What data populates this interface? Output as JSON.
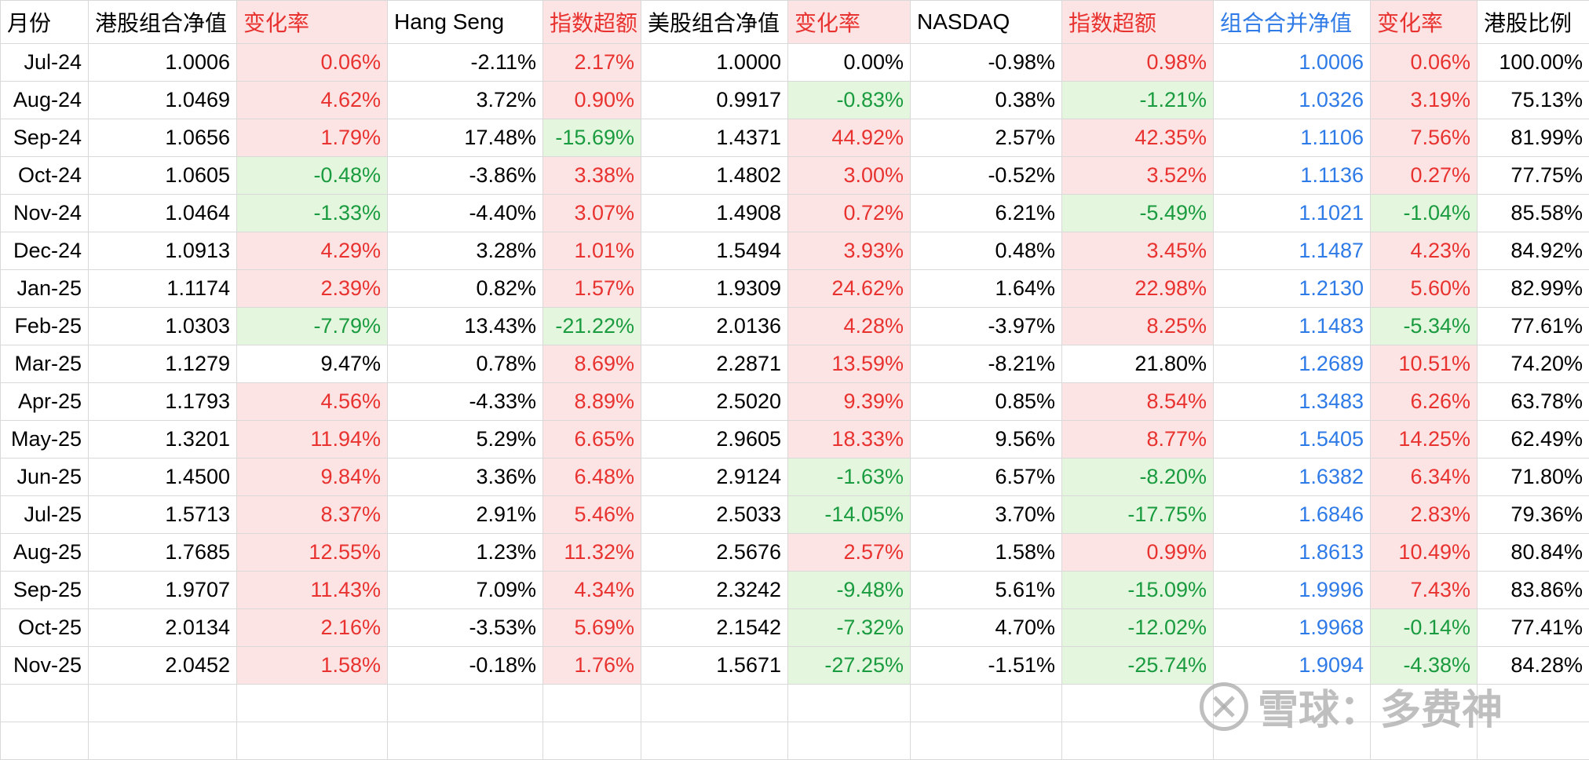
{
  "colors": {
    "text_default": "#000000",
    "text_red": "#e8322f",
    "text_green": "#1a9b3f",
    "text_blue": "#2e7ae6",
    "fill_red": "#fde4e4",
    "fill_green": "#e4f7de",
    "grid": "#d9d9d9"
  },
  "columns": [
    {
      "label": "月份",
      "color": "black",
      "fill": "none"
    },
    {
      "label": "港股组合净值",
      "color": "black",
      "fill": "none"
    },
    {
      "label": "变化率",
      "color": "red",
      "fill": "red"
    },
    {
      "label": "Hang Seng",
      "color": "black",
      "fill": "none"
    },
    {
      "label": "指数超额",
      "color": "red",
      "fill": "red"
    },
    {
      "label": "美股组合净值",
      "color": "black",
      "fill": "none"
    },
    {
      "label": "变化率",
      "color": "red",
      "fill": "red"
    },
    {
      "label": "NASDAQ",
      "color": "black",
      "fill": "none"
    },
    {
      "label": "指数超额",
      "color": "red",
      "fill": "red"
    },
    {
      "label": "组合合并净值",
      "color": "blue",
      "fill": "none"
    },
    {
      "label": "变化率",
      "color": "red",
      "fill": "red"
    },
    {
      "label": "港股比例",
      "color": "black",
      "fill": "none"
    }
  ],
  "rows": [
    {
      "cells": [
        "Jul-24",
        "1.0006",
        "0.06%",
        "-2.11%",
        "2.17%",
        "1.0000",
        "0.00%",
        "-0.98%",
        "0.98%",
        "1.0006",
        "0.06%",
        "100.00%"
      ],
      "colors": [
        "black",
        "black",
        "red",
        "black",
        "red",
        "black",
        "black",
        "black",
        "red",
        "blue",
        "red",
        "black"
      ],
      "fills": [
        "none",
        "none",
        "red",
        "none",
        "red",
        "none",
        "none",
        "none",
        "red",
        "none",
        "red",
        "none"
      ]
    },
    {
      "cells": [
        "Aug-24",
        "1.0469",
        "4.62%",
        "3.72%",
        "0.90%",
        "0.9917",
        "-0.83%",
        "0.38%",
        "-1.21%",
        "1.0326",
        "3.19%",
        "75.13%"
      ],
      "colors": [
        "black",
        "black",
        "red",
        "black",
        "red",
        "black",
        "green",
        "black",
        "green",
        "blue",
        "red",
        "black"
      ],
      "fills": [
        "none",
        "none",
        "red",
        "none",
        "red",
        "none",
        "green",
        "none",
        "green",
        "none",
        "red",
        "none"
      ]
    },
    {
      "cells": [
        "Sep-24",
        "1.0656",
        "1.79%",
        "17.48%",
        "-15.69%",
        "1.4371",
        "44.92%",
        "2.57%",
        "42.35%",
        "1.1106",
        "7.56%",
        "81.99%"
      ],
      "colors": [
        "black",
        "black",
        "red",
        "black",
        "green",
        "black",
        "red",
        "black",
        "red",
        "blue",
        "red",
        "black"
      ],
      "fills": [
        "none",
        "none",
        "red",
        "none",
        "green",
        "none",
        "red",
        "none",
        "red",
        "none",
        "red",
        "none"
      ]
    },
    {
      "cells": [
        "Oct-24",
        "1.0605",
        "-0.48%",
        "-3.86%",
        "3.38%",
        "1.4802",
        "3.00%",
        "-0.52%",
        "3.52%",
        "1.1136",
        "0.27%",
        "77.75%"
      ],
      "colors": [
        "black",
        "black",
        "green",
        "black",
        "red",
        "black",
        "red",
        "black",
        "red",
        "blue",
        "red",
        "black"
      ],
      "fills": [
        "none",
        "none",
        "green",
        "none",
        "red",
        "none",
        "red",
        "none",
        "red",
        "none",
        "red",
        "none"
      ]
    },
    {
      "cells": [
        "Nov-24",
        "1.0464",
        "-1.33%",
        "-4.40%",
        "3.07%",
        "1.4908",
        "0.72%",
        "6.21%",
        "-5.49%",
        "1.1021",
        "-1.04%",
        "85.58%"
      ],
      "colors": [
        "black",
        "black",
        "green",
        "black",
        "red",
        "black",
        "red",
        "black",
        "green",
        "blue",
        "green",
        "black"
      ],
      "fills": [
        "none",
        "none",
        "green",
        "none",
        "red",
        "none",
        "red",
        "none",
        "green",
        "none",
        "green",
        "none"
      ]
    },
    {
      "cells": [
        "Dec-24",
        "1.0913",
        "4.29%",
        "3.28%",
        "1.01%",
        "1.5494",
        "3.93%",
        "0.48%",
        "3.45%",
        "1.1487",
        "4.23%",
        "84.92%"
      ],
      "colors": [
        "black",
        "black",
        "red",
        "black",
        "red",
        "black",
        "red",
        "black",
        "red",
        "blue",
        "red",
        "black"
      ],
      "fills": [
        "none",
        "none",
        "red",
        "none",
        "red",
        "none",
        "red",
        "none",
        "red",
        "none",
        "red",
        "none"
      ]
    },
    {
      "cells": [
        "Jan-25",
        "1.1174",
        "2.39%",
        "0.82%",
        "1.57%",
        "1.9309",
        "24.62%",
        "1.64%",
        "22.98%",
        "1.2130",
        "5.60%",
        "82.99%"
      ],
      "colors": [
        "black",
        "black",
        "red",
        "black",
        "red",
        "black",
        "red",
        "black",
        "red",
        "blue",
        "red",
        "black"
      ],
      "fills": [
        "none",
        "none",
        "red",
        "none",
        "red",
        "none",
        "red",
        "none",
        "red",
        "none",
        "red",
        "none"
      ]
    },
    {
      "cells": [
        "Feb-25",
        "1.0303",
        "-7.79%",
        "13.43%",
        "-21.22%",
        "2.0136",
        "4.28%",
        "-3.97%",
        "8.25%",
        "1.1483",
        "-5.34%",
        "77.61%"
      ],
      "colors": [
        "black",
        "black",
        "green",
        "black",
        "green",
        "black",
        "red",
        "black",
        "red",
        "blue",
        "green",
        "black"
      ],
      "fills": [
        "none",
        "none",
        "green",
        "none",
        "green",
        "none",
        "red",
        "none",
        "red",
        "none",
        "green",
        "none"
      ]
    },
    {
      "cells": [
        "Mar-25",
        "1.1279",
        "9.47%",
        "0.78%",
        "8.69%",
        "2.2871",
        "13.59%",
        "-8.21%",
        "21.80%",
        "1.2689",
        "10.51%",
        "74.20%"
      ],
      "colors": [
        "black",
        "black",
        "black",
        "black",
        "red",
        "black",
        "red",
        "black",
        "black",
        "blue",
        "red",
        "black"
      ],
      "fills": [
        "none",
        "none",
        "none",
        "none",
        "red",
        "none",
        "red",
        "none",
        "none",
        "none",
        "red",
        "none"
      ]
    },
    {
      "cells": [
        "Apr-25",
        "1.1793",
        "4.56%",
        "-4.33%",
        "8.89%",
        "2.5020",
        "9.39%",
        "0.85%",
        "8.54%",
        "1.3483",
        "6.26%",
        "63.78%"
      ],
      "colors": [
        "black",
        "black",
        "red",
        "black",
        "red",
        "black",
        "red",
        "black",
        "red",
        "blue",
        "red",
        "black"
      ],
      "fills": [
        "none",
        "none",
        "red",
        "none",
        "red",
        "none",
        "red",
        "none",
        "red",
        "none",
        "red",
        "none"
      ]
    },
    {
      "cells": [
        "May-25",
        "1.3201",
        "11.94%",
        "5.29%",
        "6.65%",
        "2.9605",
        "18.33%",
        "9.56%",
        "8.77%",
        "1.5405",
        "14.25%",
        "62.49%"
      ],
      "colors": [
        "black",
        "black",
        "red",
        "black",
        "red",
        "black",
        "red",
        "black",
        "red",
        "blue",
        "red",
        "black"
      ],
      "fills": [
        "none",
        "none",
        "red",
        "none",
        "red",
        "none",
        "red",
        "none",
        "red",
        "none",
        "red",
        "none"
      ]
    },
    {
      "cells": [
        "Jun-25",
        "1.4500",
        "9.84%",
        "3.36%",
        "6.48%",
        "2.9124",
        "-1.63%",
        "6.57%",
        "-8.20%",
        "1.6382",
        "6.34%",
        "71.80%"
      ],
      "colors": [
        "black",
        "black",
        "red",
        "black",
        "red",
        "black",
        "green",
        "black",
        "green",
        "blue",
        "red",
        "black"
      ],
      "fills": [
        "none",
        "none",
        "red",
        "none",
        "red",
        "none",
        "green",
        "none",
        "green",
        "none",
        "red",
        "none"
      ]
    },
    {
      "cells": [
        "Jul-25",
        "1.5713",
        "8.37%",
        "2.91%",
        "5.46%",
        "2.5033",
        "-14.05%",
        "3.70%",
        "-17.75%",
        "1.6846",
        "2.83%",
        "79.36%"
      ],
      "colors": [
        "black",
        "black",
        "red",
        "black",
        "red",
        "black",
        "green",
        "black",
        "green",
        "blue",
        "red",
        "black"
      ],
      "fills": [
        "none",
        "none",
        "red",
        "none",
        "red",
        "none",
        "green",
        "none",
        "green",
        "none",
        "red",
        "none"
      ]
    },
    {
      "cells": [
        "Aug-25",
        "1.7685",
        "12.55%",
        "1.23%",
        "11.32%",
        "2.5676",
        "2.57%",
        "1.58%",
        "0.99%",
        "1.8613",
        "10.49%",
        "80.84%"
      ],
      "colors": [
        "black",
        "black",
        "red",
        "black",
        "red",
        "black",
        "red",
        "black",
        "red",
        "blue",
        "red",
        "black"
      ],
      "fills": [
        "none",
        "none",
        "red",
        "none",
        "red",
        "none",
        "red",
        "none",
        "red",
        "none",
        "red",
        "none"
      ]
    },
    {
      "cells": [
        "Sep-25",
        "1.9707",
        "11.43%",
        "7.09%",
        "4.34%",
        "2.3242",
        "-9.48%",
        "5.61%",
        "-15.09%",
        "1.9996",
        "7.43%",
        "83.86%"
      ],
      "colors": [
        "black",
        "black",
        "red",
        "black",
        "red",
        "black",
        "green",
        "black",
        "green",
        "blue",
        "red",
        "black"
      ],
      "fills": [
        "none",
        "none",
        "red",
        "none",
        "red",
        "none",
        "green",
        "none",
        "green",
        "none",
        "red",
        "none"
      ]
    },
    {
      "cells": [
        "Oct-25",
        "2.0134",
        "2.16%",
        "-3.53%",
        "5.69%",
        "2.1542",
        "-7.32%",
        "4.70%",
        "-12.02%",
        "1.9968",
        "-0.14%",
        "77.41%"
      ],
      "colors": [
        "black",
        "black",
        "red",
        "black",
        "red",
        "black",
        "green",
        "black",
        "green",
        "blue",
        "green",
        "black"
      ],
      "fills": [
        "none",
        "none",
        "red",
        "none",
        "red",
        "none",
        "green",
        "none",
        "green",
        "none",
        "green",
        "none"
      ]
    },
    {
      "cells": [
        "Nov-25",
        "2.0452",
        "1.58%",
        "-0.18%",
        "1.76%",
        "1.5671",
        "-27.25%",
        "-1.51%",
        "-25.74%",
        "1.9094",
        "-4.38%",
        "84.28%"
      ],
      "colors": [
        "black",
        "black",
        "red",
        "black",
        "red",
        "black",
        "green",
        "black",
        "green",
        "blue",
        "green",
        "black"
      ],
      "fills": [
        "none",
        "none",
        "red",
        "none",
        "red",
        "none",
        "green",
        "none",
        "green",
        "none",
        "green",
        "none"
      ]
    }
  ],
  "blank_rows": 2,
  "watermark": {
    "text": "雪球：多费神",
    "icon": "snowball-logo-icon"
  }
}
